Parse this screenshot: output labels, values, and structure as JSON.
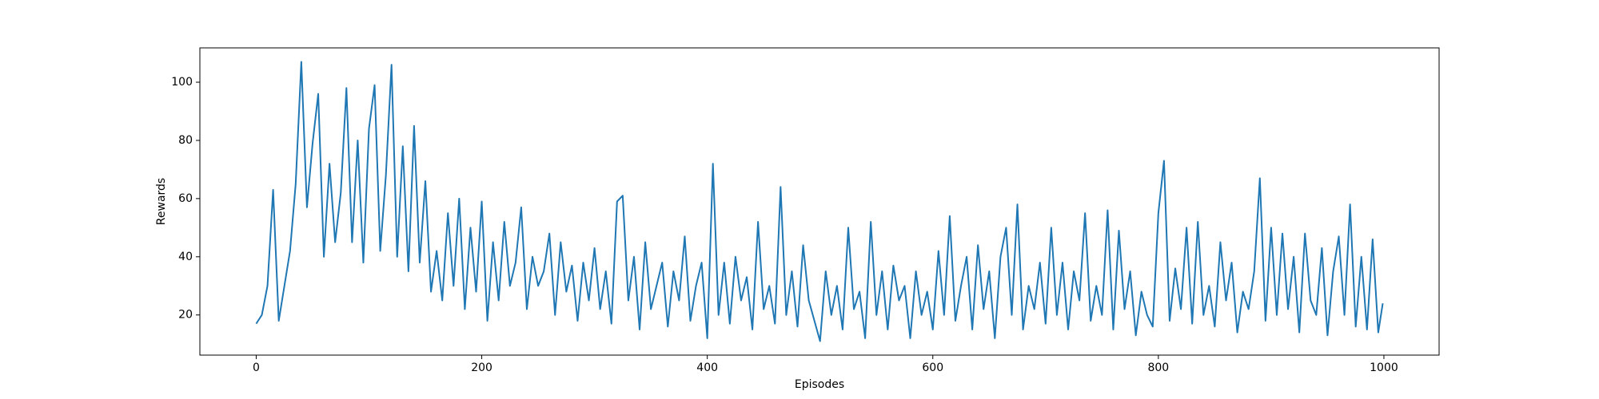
{
  "chart_data": {
    "type": "line",
    "x_label": "Episodes",
    "y_label": "Rewards",
    "x": [
      0,
      5,
      10,
      15,
      20,
      25,
      30,
      35,
      40,
      45,
      50,
      55,
      60,
      65,
      70,
      75,
      80,
      85,
      90,
      95,
      100,
      105,
      110,
      115,
      120,
      125,
      130,
      135,
      140,
      145,
      150,
      155,
      160,
      165,
      170,
      175,
      180,
      185,
      190,
      195,
      200,
      205,
      210,
      215,
      220,
      225,
      230,
      235,
      240,
      245,
      250,
      255,
      260,
      265,
      270,
      275,
      280,
      285,
      290,
      295,
      300,
      305,
      310,
      315,
      320,
      325,
      330,
      335,
      340,
      345,
      350,
      355,
      360,
      365,
      370,
      375,
      380,
      385,
      390,
      395,
      400,
      405,
      410,
      415,
      420,
      425,
      430,
      435,
      440,
      445,
      450,
      455,
      460,
      465,
      470,
      475,
      480,
      485,
      490,
      495,
      500,
      505,
      510,
      515,
      520,
      525,
      530,
      535,
      540,
      545,
      550,
      555,
      560,
      565,
      570,
      575,
      580,
      585,
      590,
      595,
      600,
      605,
      610,
      615,
      620,
      625,
      630,
      635,
      640,
      645,
      650,
      655,
      660,
      665,
      670,
      675,
      680,
      685,
      690,
      695,
      700,
      705,
      710,
      715,
      720,
      725,
      730,
      735,
      740,
      745,
      750,
      755,
      760,
      765,
      770,
      775,
      780,
      785,
      790,
      795,
      800,
      805,
      810,
      815,
      820,
      825,
      830,
      835,
      840,
      845,
      850,
      855,
      860,
      865,
      870,
      875,
      880,
      885,
      890,
      895,
      900,
      905,
      910,
      915,
      920,
      925,
      930,
      935,
      940,
      945,
      950,
      955,
      960,
      965,
      970,
      975,
      980,
      985,
      990,
      995,
      999
    ],
    "values": [
      17,
      20,
      30,
      63,
      18,
      30,
      42,
      65,
      107,
      57,
      79,
      96,
      40,
      72,
      45,
      62,
      98,
      45,
      80,
      38,
      84,
      99,
      42,
      68,
      106,
      40,
      78,
      35,
      85,
      38,
      66,
      28,
      42,
      25,
      55,
      30,
      60,
      22,
      50,
      28,
      59,
      18,
      45,
      25,
      52,
      30,
      38,
      57,
      22,
      40,
      30,
      35,
      48,
      20,
      45,
      28,
      37,
      18,
      38,
      25,
      43,
      22,
      35,
      17,
      59,
      61,
      25,
      40,
      15,
      45,
      22,
      30,
      38,
      16,
      35,
      25,
      47,
      18,
      30,
      38,
      12,
      72,
      20,
      38,
      17,
      40,
      25,
      33,
      15,
      52,
      22,
      30,
      17,
      64,
      20,
      35,
      16,
      44,
      25,
      18,
      11,
      35,
      20,
      30,
      15,
      50,
      22,
      28,
      12,
      52,
      20,
      35,
      15,
      37,
      25,
      30,
      12,
      35,
      20,
      28,
      15,
      42,
      20,
      54,
      18,
      30,
      40,
      15,
      44,
      22,
      35,
      12,
      40,
      50,
      20,
      58,
      15,
      30,
      22,
      38,
      17,
      50,
      20,
      38,
      15,
      35,
      25,
      55,
      18,
      30,
      20,
      56,
      15,
      49,
      22,
      35,
      13,
      28,
      20,
      16,
      55,
      73,
      18,
      36,
      22,
      50,
      17,
      52,
      20,
      30,
      16,
      45,
      25,
      38,
      14,
      28,
      22,
      35,
      67,
      18,
      50,
      20,
      48,
      22,
      40,
      14,
      48,
      25,
      20,
      43,
      13,
      35,
      47,
      20,
      58,
      16,
      40,
      15,
      46,
      14,
      24
    ],
    "color": "#1f77b4",
    "xlim": [
      -49.95,
      1048.95
    ],
    "xticks": [
      0,
      200,
      400,
      600,
      800,
      1000
    ],
    "ylim": [
      6.2,
      111.8
    ],
    "yticks": [
      20,
      40,
      60,
      80,
      100
    ],
    "grid": false
  }
}
